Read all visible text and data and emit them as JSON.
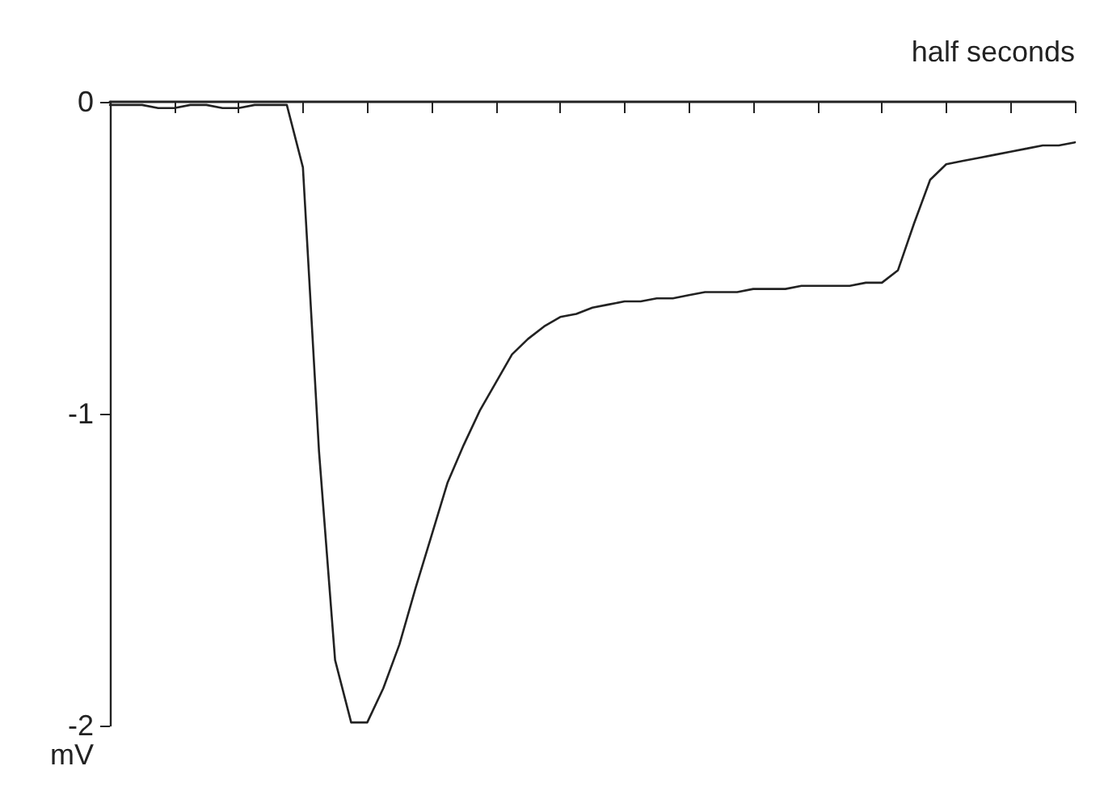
{
  "chart_data": {
    "type": "line",
    "xlabel": "half seconds",
    "ylabel": "mV",
    "categories": [
      null,
      null,
      null,
      null,
      null,
      null,
      null,
      null,
      null,
      null,
      null,
      null,
      null,
      null,
      null,
      null,
      null,
      null,
      null,
      null,
      null,
      null,
      null,
      null,
      null,
      null,
      null,
      null,
      null,
      null,
      null,
      null,
      null,
      null,
      null,
      null,
      null,
      null,
      null,
      null,
      null,
      null,
      null,
      null,
      null,
      null,
      null,
      null,
      null,
      null,
      null,
      null,
      null,
      null,
      null,
      null,
      null,
      null,
      null,
      null,
      null
    ],
    "ylim": [
      -2,
      0
    ],
    "yticks": [
      -2,
      -1,
      0
    ],
    "tick_labels": "y",
    "grid": false,
    "marker": "none",
    "line_style": "solid",
    "series": [
      {
        "color": "#222222",
        "values": [
          -0.01,
          -0.01,
          -0.01,
          -0.02,
          -0.02,
          -0.01,
          -0.01,
          -0.02,
          -0.02,
          -0.01,
          -0.01,
          -0.01,
          -0.21,
          -1.12,
          -1.79,
          -1.99,
          -1.99,
          -1.88,
          -1.74,
          -1.56,
          -1.39,
          -1.22,
          -1.1,
          -0.99,
          -0.9,
          -0.81,
          -0.76,
          -0.72,
          -0.69,
          -0.68,
          -0.66,
          -0.65,
          -0.64,
          -0.64,
          -0.63,
          -0.63,
          -0.62,
          -0.61,
          -0.61,
          -0.61,
          -0.6,
          -0.6,
          -0.6,
          -0.59,
          -0.59,
          -0.59,
          -0.59,
          -0.58,
          -0.58,
          -0.54,
          -0.39,
          -0.25,
          -0.2,
          -0.19,
          -0.18,
          -0.17,
          -0.16,
          -0.15,
          -0.14,
          -0.14,
          -0.13
        ]
      }
    ]
  }
}
